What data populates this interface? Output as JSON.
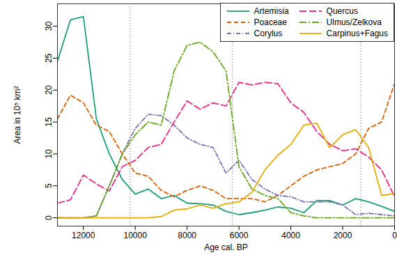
{
  "chart_data": {
    "type": "line",
    "x_label": "Age cal. BP",
    "y_label": "Area in 10⁵ km²",
    "x": [
      13000,
      12500,
      12000,
      11500,
      11000,
      10500,
      10000,
      9500,
      9000,
      8500,
      8000,
      7500,
      7000,
      6500,
      6000,
      5500,
      5000,
      4500,
      4000,
      3500,
      3000,
      2500,
      2000,
      1500,
      1000,
      500,
      0
    ],
    "xlim": [
      13000,
      0
    ],
    "xticks": [
      12000,
      10000,
      8000,
      6000,
      4000,
      2000,
      0
    ],
    "ylim": [
      -1.3,
      33.5
    ],
    "yticks": [
      0,
      5,
      10,
      15,
      20,
      25,
      30
    ],
    "grid": false,
    "legend": "top-right",
    "reference_lines": [
      10200,
      6250,
      1300
    ],
    "series": [
      {
        "name": "Artemisia",
        "color": "#1b9e77",
        "line_style": "solid",
        "values": [
          24.5,
          31,
          31.5,
          15.5,
          10,
          6,
          3.7,
          4.5,
          3,
          3.5,
          2.3,
          2.2,
          2,
          1,
          0.5,
          0.8,
          1.2,
          1.7,
          1.5,
          0.8,
          2.7,
          2.7,
          2,
          3,
          2.5,
          1.8,
          1
        ]
      },
      {
        "name": "Poaceae",
        "color": "#d95f02",
        "line_style": "dashed",
        "values": [
          15.5,
          19.2,
          18,
          14.5,
          13.5,
          10,
          7,
          6.5,
          4.3,
          3.3,
          4.3,
          5,
          4.3,
          3,
          3,
          3,
          2.5,
          3.5,
          5,
          6.5,
          7.5,
          8,
          8.5,
          10,
          14,
          15,
          21
        ]
      },
      {
        "name": "Corylus",
        "color": "#7570b3",
        "line_style": "dashdot",
        "values": [
          0,
          0,
          0,
          0.3,
          5,
          10,
          14,
          16.2,
          16,
          14.5,
          12.5,
          11.5,
          11,
          7,
          9,
          6,
          4.5,
          3.5,
          3.3,
          2.5,
          2.5,
          2.5,
          2,
          0.5,
          0.7,
          0.5,
          0.3
        ]
      },
      {
        "name": "Quercus",
        "color": "#e7298a",
        "line_style": "longdash",
        "values": [
          2.3,
          2.8,
          6.7,
          5.3,
          4.2,
          8,
          9,
          11,
          11.5,
          15,
          18.3,
          17,
          18,
          17.5,
          21.2,
          20.8,
          21.2,
          21,
          18,
          16.5,
          13.5,
          11.5,
          10.5,
          10.8,
          9.5,
          7.5,
          3.3
        ]
      },
      {
        "name": "Ulmus/Zelkova",
        "color": "#66a61e",
        "line_style": "longdashdot",
        "values": [
          0,
          0,
          0,
          0.3,
          5,
          10,
          13,
          15,
          14.5,
          23,
          27,
          27.5,
          26,
          23,
          8,
          4.5,
          3.5,
          3,
          0.8,
          0.3,
          0,
          0,
          0,
          0,
          0,
          0,
          0
        ]
      },
      {
        "name": "Carpinus+Fagus",
        "color": "#e6ab02",
        "line_style": "solid",
        "values": [
          0,
          0,
          0,
          0,
          0,
          0,
          0,
          0,
          0.2,
          1.2,
          1.4,
          2,
          1.5,
          2.2,
          2.5,
          4,
          7.5,
          9.8,
          11.5,
          14.5,
          14.8,
          11,
          13,
          13.8,
          11,
          3.5,
          3.8
        ]
      }
    ]
  }
}
